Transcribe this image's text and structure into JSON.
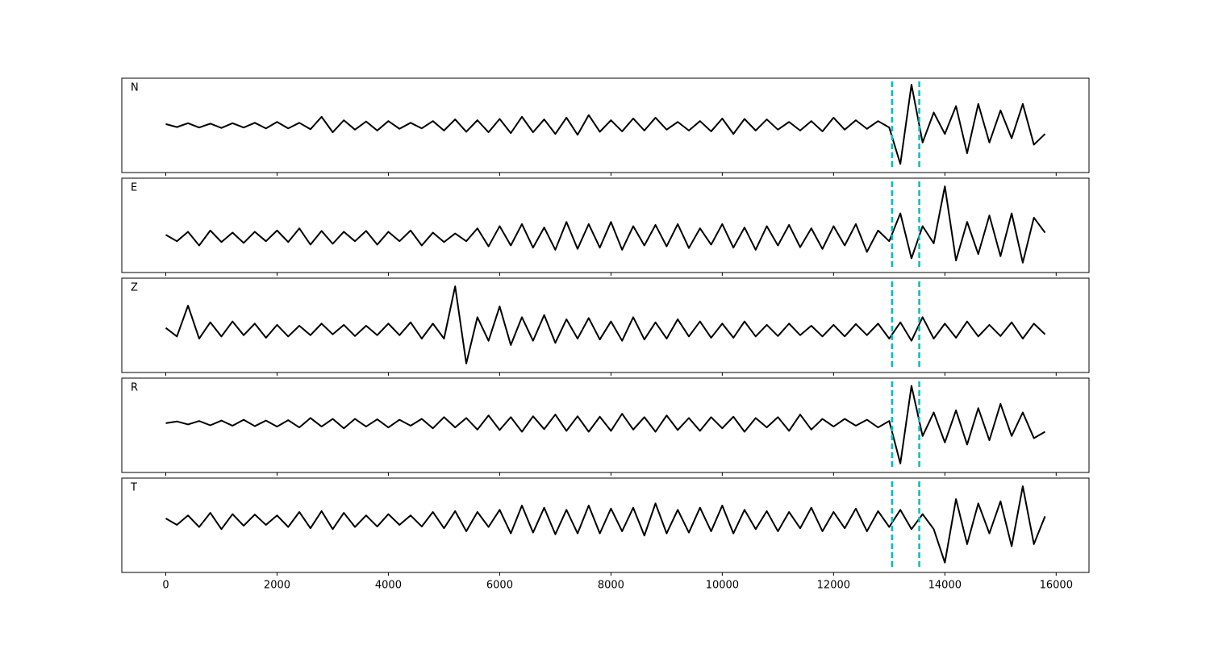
{
  "chart_data": {
    "type": "line",
    "subplots": true,
    "x": [
      0,
      200,
      400,
      600,
      800,
      1000,
      1200,
      1400,
      1600,
      1800,
      2000,
      2200,
      2400,
      2600,
      2800,
      3000,
      3200,
      3400,
      3600,
      3800,
      4000,
      4200,
      4400,
      4600,
      4800,
      5000,
      5200,
      5400,
      5600,
      5800,
      6000,
      6200,
      6400,
      6600,
      6800,
      7000,
      7200,
      7400,
      7600,
      7800,
      8000,
      8200,
      8400,
      8600,
      8800,
      9000,
      9200,
      9400,
      9600,
      9800,
      10000,
      10200,
      10400,
      10600,
      10800,
      11000,
      11200,
      11400,
      11600,
      11800,
      12000,
      12200,
      12400,
      12600,
      12800,
      13000,
      13200,
      13400,
      13600,
      13800,
      14000,
      14200,
      14400,
      14600,
      14800,
      15000,
      15200,
      15400,
      15600,
      15800
    ],
    "xlim": [
      -790,
      16590
    ],
    "xticks": [
      0,
      2000,
      4000,
      6000,
      8000,
      10000,
      12000,
      14000,
      16000
    ],
    "vlines": [
      13050,
      13540
    ],
    "vline_color": "#00bfbf",
    "series": [
      {
        "name": "N",
        "color": "#000000",
        "ylim": [
          -1.1,
          1.1
        ],
        "values": [
          0.03,
          -0.04,
          0.05,
          -0.05,
          0.04,
          -0.06,
          0.05,
          -0.05,
          0.06,
          -0.07,
          0.08,
          -0.07,
          0.06,
          -0.09,
          0.2,
          -0.16,
          0.12,
          -0.1,
          0.09,
          -0.12,
          0.1,
          -0.08,
          0.06,
          -0.07,
          0.1,
          -0.12,
          0.14,
          -0.15,
          0.12,
          -0.16,
          0.15,
          -0.18,
          0.2,
          -0.16,
          0.14,
          -0.2,
          0.18,
          -0.22,
          0.24,
          -0.15,
          0.12,
          -0.14,
          0.16,
          -0.12,
          0.18,
          -0.1,
          0.08,
          -0.12,
          0.1,
          -0.14,
          0.16,
          -0.2,
          0.15,
          -0.12,
          0.14,
          -0.1,
          0.08,
          -0.12,
          0.1,
          -0.14,
          0.18,
          -0.1,
          0.12,
          -0.08,
          0.1,
          -0.05,
          -0.9,
          0.95,
          -0.4,
          0.3,
          -0.2,
          0.45,
          -0.65,
          0.5,
          -0.4,
          0.35,
          -0.3,
          0.5,
          -0.45,
          -0.2
        ]
      },
      {
        "name": "E",
        "color": "#000000",
        "ylim": [
          -0.83,
          1.37
        ],
        "values": [
          0.05,
          -0.1,
          0.12,
          -0.2,
          0.15,
          -0.12,
          0.1,
          -0.14,
          0.12,
          -0.1,
          0.15,
          -0.12,
          0.2,
          -0.18,
          0.14,
          -0.16,
          0.12,
          -0.1,
          0.14,
          -0.18,
          0.12,
          -0.1,
          0.15,
          -0.2,
          0.1,
          -0.12,
          0.08,
          -0.1,
          0.2,
          -0.22,
          0.25,
          -0.2,
          0.3,
          -0.25,
          0.22,
          -0.3,
          0.35,
          -0.28,
          0.3,
          -0.25,
          0.35,
          -0.3,
          0.25,
          -0.2,
          0.28,
          -0.22,
          0.3,
          -0.26,
          0.2,
          -0.18,
          0.3,
          -0.25,
          0.22,
          -0.3,
          0.25,
          -0.2,
          0.28,
          -0.24,
          0.2,
          -0.28,
          0.25,
          -0.2,
          0.3,
          -0.35,
          0.15,
          -0.1,
          0.55,
          -0.5,
          0.25,
          -0.15,
          1.18,
          -0.55,
          0.35,
          -0.4,
          0.5,
          -0.45,
          0.55,
          -0.6,
          0.45,
          0.1
        ]
      },
      {
        "name": "Z",
        "color": "#000000",
        "ylim": [
          -0.99,
          1.21
        ],
        "values": [
          0.05,
          -0.15,
          0.57,
          -0.2,
          0.18,
          -0.15,
          0.2,
          -0.12,
          0.15,
          -0.18,
          0.12,
          -0.15,
          0.1,
          -0.12,
          0.15,
          -0.1,
          0.12,
          -0.14,
          0.1,
          -0.12,
          0.15,
          -0.12,
          0.18,
          -0.2,
          0.15,
          -0.2,
          1.02,
          -0.78,
          0.3,
          -0.25,
          0.55,
          -0.35,
          0.3,
          -0.25,
          0.35,
          -0.3,
          0.25,
          -0.2,
          0.28,
          -0.22,
          0.2,
          -0.25,
          0.3,
          -0.22,
          0.18,
          -0.2,
          0.25,
          -0.15,
          0.2,
          -0.18,
          0.15,
          -0.18,
          0.2,
          -0.15,
          0.12,
          -0.14,
          0.15,
          -0.12,
          0.1,
          -0.15,
          0.12,
          -0.15,
          0.14,
          -0.12,
          0.15,
          -0.2,
          0.18,
          -0.25,
          0.3,
          -0.2,
          0.15,
          -0.18,
          0.2,
          -0.15,
          0.12,
          -0.14,
          0.18,
          -0.2,
          0.15,
          -0.1
        ]
      },
      {
        "name": "R",
        "color": "#000000",
        "ylim": [
          -1.15,
          1.05
        ],
        "values": [
          0.0,
          0.04,
          -0.03,
          0.05,
          -0.05,
          0.06,
          -0.06,
          0.08,
          -0.07,
          0.06,
          -0.08,
          0.07,
          -0.1,
          0.12,
          -0.08,
          0.1,
          -0.12,
          0.1,
          -0.08,
          0.09,
          -0.1,
          0.08,
          -0.06,
          0.1,
          -0.12,
          0.14,
          -0.1,
          0.12,
          -0.15,
          0.18,
          -0.16,
          0.14,
          -0.2,
          0.16,
          -0.14,
          0.2,
          -0.18,
          0.16,
          -0.2,
          0.15,
          -0.18,
          0.22,
          -0.15,
          0.14,
          -0.2,
          0.18,
          -0.16,
          0.12,
          -0.18,
          0.14,
          -0.12,
          0.15,
          -0.2,
          0.12,
          -0.1,
          0.14,
          -0.18,
          0.2,
          -0.15,
          0.1,
          -0.08,
          0.1,
          -0.06,
          0.08,
          -0.1,
          0.05,
          -0.94,
          0.87,
          -0.3,
          0.25,
          -0.45,
          0.3,
          -0.5,
          0.35,
          -0.4,
          0.45,
          -0.3,
          0.25,
          -0.35,
          -0.2
        ]
      },
      {
        "name": "T",
        "color": "#000000",
        "ylim": [
          -1.21,
          0.99
        ],
        "values": [
          0.05,
          -0.1,
          0.12,
          -0.15,
          0.18,
          -0.2,
          0.15,
          -0.12,
          0.14,
          -0.1,
          0.12,
          -0.15,
          0.2,
          -0.18,
          0.22,
          -0.2,
          0.18,
          -0.15,
          0.12,
          -0.14,
          0.15,
          -0.1,
          0.12,
          -0.14,
          0.2,
          -0.18,
          0.22,
          -0.25,
          0.2,
          -0.15,
          0.25,
          -0.3,
          0.35,
          -0.28,
          0.3,
          -0.32,
          0.25,
          -0.3,
          0.35,
          -0.3,
          0.28,
          -0.25,
          0.3,
          -0.35,
          0.4,
          -0.3,
          0.25,
          -0.28,
          0.3,
          -0.25,
          0.35,
          -0.3,
          0.25,
          -0.2,
          0.22,
          -0.25,
          0.2,
          -0.18,
          0.3,
          -0.25,
          0.2,
          -0.18,
          0.28,
          -0.25,
          0.22,
          -0.15,
          0.25,
          -0.2,
          0.15,
          -0.2,
          -0.98,
          0.5,
          -0.55,
          0.4,
          -0.3,
          0.45,
          -0.6,
          0.8,
          -0.55,
          0.1
        ]
      }
    ]
  }
}
